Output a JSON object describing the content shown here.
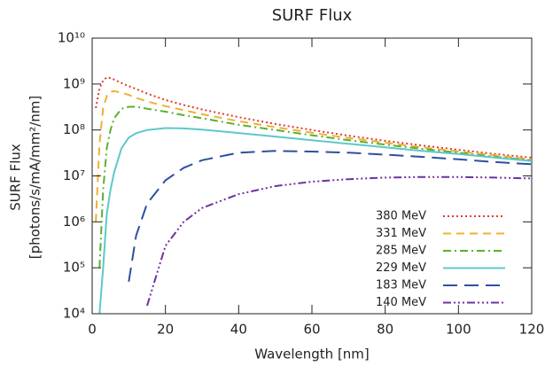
{
  "chart_data": {
    "type": "line",
    "title": "SURF Flux",
    "y_label": [
      "SURF Flux",
      "[photons/s/mA/mm²/nm]"
    ],
    "x_label": "Wavelength [nm]",
    "log_y": true,
    "x": [
      1,
      2,
      3,
      4,
      5,
      6,
      8,
      10,
      12,
      15,
      20,
      25,
      30,
      40,
      50,
      60,
      70,
      80,
      90,
      100,
      110,
      120
    ],
    "series": [
      {
        "name": "380 MeV",
        "color": "#e03c31",
        "dash": "dotted",
        "values": [
          300000000,
          800000000,
          1200000000,
          1400000000,
          1350000000,
          1250000000,
          1050000000,
          900000000,
          780000000,
          620000000,
          450000000,
          350000000,
          280000000,
          190000000,
          135000000,
          100000000,
          75000000,
          58000000,
          46000000,
          37000000,
          30000000,
          25000000
        ]
      },
      {
        "name": "331 MeV",
        "color": "#f0b030",
        "dash": "dashed",
        "values": [
          1000000,
          50000000,
          300000000,
          550000000,
          680000000,
          700000000,
          650000000,
          580000000,
          500000000,
          420000000,
          330000000,
          270000000,
          220000000,
          155000000,
          115000000,
          87000000,
          67000000,
          53000000,
          42000000,
          34000000,
          28000000,
          23000000
        ]
      },
      {
        "name": "285 MeV",
        "color": "#5ab030",
        "dash": "dashdot",
        "values": [
          null,
          100000,
          5000000,
          40000000,
          100000000,
          180000000,
          290000000,
          320000000,
          320000000,
          290000000,
          250000000,
          210000000,
          180000000,
          130000000,
          100000000,
          77000000,
          60000000,
          48000000,
          39000000,
          32000000,
          26000000,
          22000000
        ]
      },
      {
        "name": "229 MeV",
        "color": "#5ec8c8",
        "dash": "solid",
        "values": [
          null,
          10000,
          100000,
          1500000,
          5000000,
          12000000,
          40000000,
          68000000,
          85000000,
          100000000,
          110000000,
          108000000,
          102000000,
          86000000,
          72000000,
          60000000,
          50000000,
          42000000,
          35000000,
          30000000,
          25000000,
          21000000
        ]
      },
      {
        "name": "183 MeV",
        "color": "#2f4f9f",
        "dash": "longdash",
        "values": [
          null,
          null,
          null,
          null,
          null,
          null,
          null,
          50000,
          500000,
          2500000,
          8000000,
          15000000,
          22000000,
          32000000,
          35000000,
          34000000,
          32000000,
          29000000,
          26000000,
          23000000,
          20000000,
          18000000
        ]
      },
      {
        "name": "140 MeV",
        "color": "#7030a0",
        "dash": "dashdotdotdot",
        "values": [
          null,
          null,
          null,
          null,
          null,
          null,
          null,
          null,
          null,
          15000,
          300000,
          1000000,
          2000000,
          4000000,
          6000000,
          7500000,
          8500000,
          9200000,
          9500000,
          9500000,
          9200000,
          8800000
        ]
      }
    ],
    "xlim": [
      0,
      120
    ],
    "xticks": [
      0,
      20,
      40,
      60,
      80,
      100,
      120
    ],
    "ylim": [
      10000,
      10000000000
    ],
    "yticks": [
      {
        "value": 10000,
        "label": "10⁴"
      },
      {
        "value": 100000,
        "label": "10⁵"
      },
      {
        "value": 1000000,
        "label": "10⁶"
      },
      {
        "value": 10000000,
        "label": "10⁷"
      },
      {
        "value": 100000000,
        "label": "10⁸"
      },
      {
        "value": 1000000000,
        "label": "10⁹"
      },
      {
        "value": 10000000000,
        "label": "10¹⁰"
      }
    ],
    "legend": "lower right"
  }
}
